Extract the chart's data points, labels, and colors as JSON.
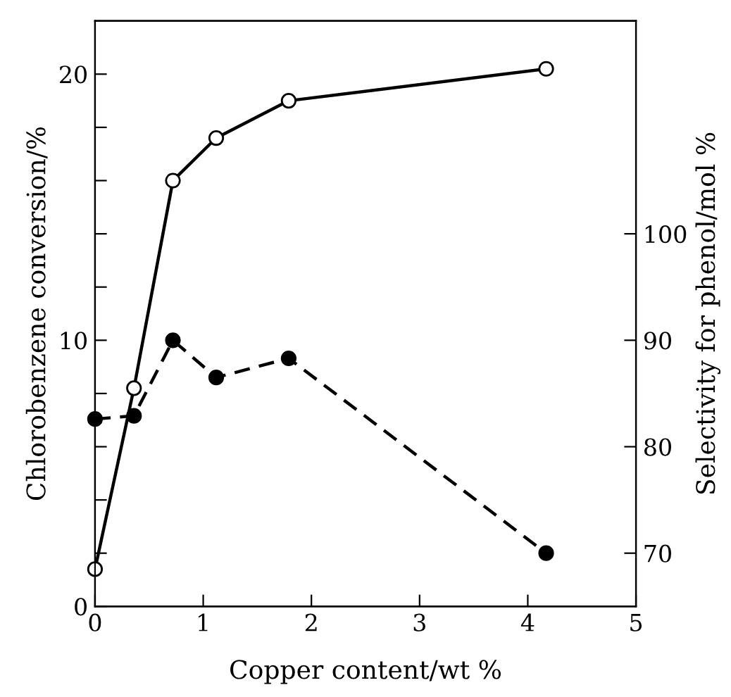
{
  "chart_data": {
    "type": "line",
    "xlabel": "Copper content/wt %",
    "ylabel": "Chlorobenzene conversion/%",
    "y2label": "Selectivity for phenol/mol %",
    "xlim": [
      0,
      5
    ],
    "xticks": [
      0,
      1,
      2,
      3,
      4,
      5
    ],
    "ylim": [
      0,
      22
    ],
    "yticks": [
      0,
      {
        "value": 2,
        "label": null
      },
      {
        "value": 4,
        "label": null
      },
      {
        "value": 6,
        "label": null
      },
      {
        "value": 8,
        "label": null
      },
      10,
      {
        "value": 12,
        "label": null
      },
      {
        "value": 14,
        "label": null
      },
      {
        "value": 16,
        "label": null
      },
      {
        "value": 18,
        "label": null
      },
      20
    ],
    "y2lim": [
      65,
      120
    ],
    "y2ticks": [
      70,
      80,
      90,
      100
    ],
    "grid": false,
    "legend": false,
    "series": [
      {
        "color": "#000000",
        "marker": "circle",
        "axis": "y",
        "line_style": "solid",
        "x": [
          0,
          0.36,
          0.72,
          1.12,
          1.79,
          4.17
        ],
        "values": [
          1.4,
          8.2,
          16.0,
          17.6,
          19.0,
          20.2
        ]
      },
      {
        "color": "#000000",
        "marker": "circle",
        "line_style": "dashed",
        "axis": "y2",
        "x": [
          0,
          0.36,
          0.72,
          1.12,
          1.79,
          4.17
        ],
        "values": [
          82.6,
          82.9,
          90.0,
          86.5,
          88.3,
          70.0
        ]
      }
    ]
  }
}
